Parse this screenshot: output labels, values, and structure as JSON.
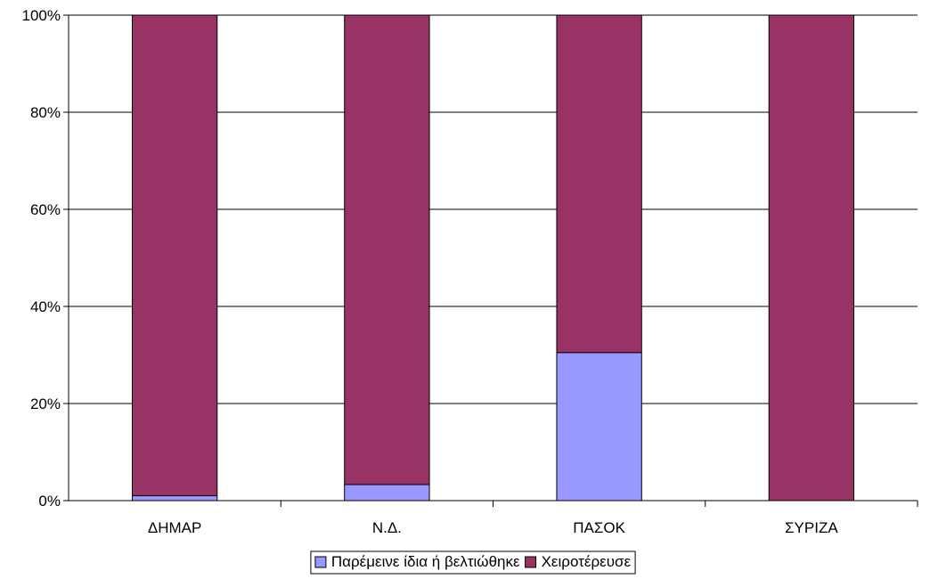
{
  "chart_data": {
    "type": "bar",
    "stacked": true,
    "percent": true,
    "categories": [
      "ΔΗΜΑΡ",
      "Ν.Δ.",
      "ΠΑΣΟΚ",
      "ΣΥΡΙΖΑ"
    ],
    "series": [
      {
        "name": "Παρέμεινε ίδια ή βελτιώθηκε",
        "values": [
          1,
          3.3,
          30.5,
          0
        ],
        "color": "#9999ff"
      },
      {
        "name": "Χειροτέρευσε",
        "values": [
          99,
          96.7,
          69.5,
          100
        ],
        "color": "#993366"
      }
    ],
    "ylim": [
      0,
      100
    ],
    "yticks": [
      0,
      20,
      40,
      60,
      80,
      100
    ],
    "ytick_labels": [
      "0%",
      "20%",
      "40%",
      "60%",
      "80%",
      "100%"
    ],
    "grid": true,
    "legend_position": "bottom",
    "title": "",
    "xlabel": "",
    "ylabel": ""
  }
}
